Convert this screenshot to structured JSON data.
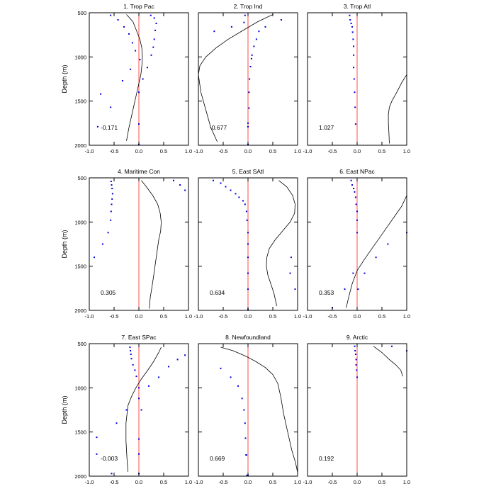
{
  "figure": {
    "y_axis_label": "Depth (m)"
  },
  "colors": {
    "zero_line": "#ff4d4d",
    "points": "#0000dd",
    "curve": "#000000",
    "frame": "#000000"
  },
  "chart_data": [
    {
      "type": "scatter",
      "title": "1. Trop Pac",
      "annotation": "-0.171",
      "xlim": [
        -1,
        1
      ],
      "ylim": [
        2000,
        500
      ],
      "xticks": [
        "-1.0",
        "-0.5",
        "0.0",
        "0.5",
        "1.0"
      ],
      "yticks": [
        "500",
        "1000",
        "1500",
        "2000"
      ],
      "series": [
        {
          "kind": "points",
          "x": [
            0.24,
            -0.57,
            0.31,
            -0.42,
            0.35,
            -0.3,
            0.33,
            -0.2,
            0.31,
            -0.13,
            0.29,
            -0.07,
            0.25,
            0.02,
            0.17,
            -0.17,
            0.08,
            -0.33,
            0.0,
            -0.77,
            -0.57,
            0.0,
            -0.83,
            0.0
          ],
          "y": [
            530,
            530,
            560,
            580,
            620,
            660,
            700,
            740,
            800,
            840,
            890,
            930,
            980,
            1030,
            1120,
            1140,
            1250,
            1270,
            1400,
            1420,
            1570,
            1760,
            1790,
            1990
          ]
        },
        {
          "kind": "line",
          "x": [
            -0.25,
            -0.12,
            -0.05,
            0.02,
            0.06,
            0.07,
            0.06,
            0.04,
            0.0,
            -0.04,
            -0.08,
            -0.12,
            -0.16,
            -0.2,
            -0.25
          ],
          "y": [
            520,
            600,
            700,
            800,
            900,
            1000,
            1100,
            1200,
            1300,
            1400,
            1500,
            1600,
            1700,
            1800,
            1950
          ]
        }
      ]
    },
    {
      "type": "scatter",
      "title": "2. Trop Ind",
      "annotation": "-0.677",
      "xlim": [
        -1,
        1
      ],
      "ylim": [
        2000,
        500
      ],
      "xticks": [
        "-1.0",
        "-0.5",
        "0.0",
        "0.5",
        "1.0"
      ],
      "yticks": [
        "500",
        "1000",
        "1500",
        "2000"
      ],
      "series": [
        {
          "kind": "points",
          "x": [
            -0.06,
            0.67,
            -0.08,
            -0.33,
            0.35,
            -0.68,
            0.22,
            0.17,
            0.12,
            0.08,
            0.07,
            0.05,
            0.03,
            0.02,
            0.02,
            0.0,
            0.0,
            0.0
          ],
          "y": [
            530,
            580,
            610,
            660,
            660,
            710,
            710,
            800,
            880,
            980,
            1020,
            1110,
            1250,
            1400,
            1580,
            1750,
            1790,
            1990
          ]
        },
        {
          "kind": "line",
          "x": [
            0.5,
            0.2,
            -0.1,
            -0.4,
            -0.65,
            -0.85,
            -0.97,
            -1.0,
            -0.95,
            -0.85,
            -0.75,
            -0.62
          ],
          "y": [
            520,
            600,
            700,
            800,
            900,
            1000,
            1100,
            1200,
            1400,
            1600,
            1800,
            1960
          ]
        }
      ]
    },
    {
      "type": "scatter",
      "title": "3. Trop Atl",
      "annotation": "1.027",
      "xlim": [
        -1,
        1
      ],
      "ylim": [
        2000,
        500
      ],
      "xticks": [
        "-1.0",
        "-0.5",
        "0.0",
        "0.5",
        "1.0"
      ],
      "yticks": [
        "500",
        "1000",
        "1500",
        "2000"
      ],
      "series": [
        {
          "kind": "points",
          "x": [
            -0.15,
            -0.14,
            -0.12,
            -0.1,
            -0.09,
            -0.08,
            -0.07,
            -0.07,
            -0.07,
            -0.06,
            -0.05,
            -0.04,
            -0.03
          ],
          "y": [
            530,
            580,
            620,
            660,
            720,
            800,
            880,
            980,
            1120,
            1250,
            1400,
            1570,
            1760
          ]
        },
        {
          "kind": "line",
          "x": [
            1.0,
            0.9,
            0.8,
            0.7,
            0.65,
            0.63,
            0.63,
            0.64,
            0.65
          ],
          "y": [
            1200,
            1290,
            1400,
            1500,
            1570,
            1650,
            1750,
            1850,
            1980
          ]
        }
      ]
    },
    {
      "type": "scatter",
      "title": "4. Maritime Con",
      "annotation": "0.305",
      "xlim": [
        -1,
        1
      ],
      "ylim": [
        2000,
        500
      ],
      "xticks": [
        "-1.0",
        "-0.5",
        "0.0",
        "0.5",
        "1.0"
      ],
      "yticks": [
        "500",
        "1000",
        "1500",
        "2000"
      ],
      "series": [
        {
          "kind": "points",
          "x": [
            0.7,
            -0.56,
            0.83,
            -0.55,
            0.93,
            -0.54,
            -0.53,
            -0.54,
            -0.55,
            -0.56,
            -0.57,
            -0.62,
            -0.73,
            -0.9
          ],
          "y": [
            530,
            540,
            580,
            580,
            640,
            620,
            680,
            740,
            800,
            880,
            980,
            1120,
            1250,
            1400
          ]
        },
        {
          "kind": "line",
          "x": [
            0.05,
            0.15,
            0.28,
            0.38,
            0.43,
            0.45,
            0.44,
            0.4,
            0.35,
            0.3,
            0.26,
            0.23,
            0.21
          ],
          "y": [
            530,
            600,
            700,
            800,
            900,
            1000,
            1100,
            1200,
            1400,
            1600,
            1750,
            1850,
            1980
          ]
        }
      ]
    },
    {
      "type": "scatter",
      "title": "5. East SAtl",
      "annotation": "0.634",
      "xlim": [
        -1,
        1
      ],
      "ylim": [
        2000,
        500
      ],
      "xticks": [
        "-1.0",
        "-0.5",
        "0.0",
        "0.5",
        "1.0"
      ],
      "yticks": [
        "500",
        "1000",
        "1500",
        "2000"
      ],
      "series": [
        {
          "kind": "points",
          "x": [
            -0.7,
            -0.55,
            -0.45,
            -0.35,
            -0.25,
            -0.18,
            -0.1,
            -0.06,
            -0.03,
            -0.02,
            0.0,
            0.0,
            0.0,
            0.0,
            0.0,
            0.0,
            0.0,
            0.0,
            0.0,
            0.87,
            0.85,
            0.95
          ],
          "y": [
            530,
            560,
            600,
            640,
            680,
            720,
            760,
            800,
            880,
            980,
            1120,
            1250,
            1400,
            1580,
            1760,
            1990,
            1990,
            1990,
            1990,
            1400,
            1580,
            1760
          ]
        },
        {
          "kind": "line",
          "x": [
            0.62,
            0.78,
            0.9,
            0.95,
            0.94,
            0.85,
            0.7,
            0.55,
            0.43,
            0.38,
            0.37,
            0.4,
            0.46,
            0.52,
            0.58
          ],
          "y": [
            530,
            600,
            700,
            800,
            900,
            1000,
            1100,
            1200,
            1300,
            1400,
            1500,
            1600,
            1700,
            1800,
            1950
          ]
        }
      ]
    },
    {
      "type": "scatter",
      "title": "6. East NPac",
      "annotation": "0.353",
      "xlim": [
        -1,
        1
      ],
      "ylim": [
        2000,
        500
      ],
      "xticks": [
        "-1.0",
        "-0.5",
        "0.0",
        "0.5",
        "1.0"
      ],
      "yticks": [
        "500",
        "1000",
        "1500",
        "2000"
      ],
      "series": [
        {
          "kind": "points",
          "x": [
            -0.12,
            -0.1,
            -0.07,
            -0.05,
            -0.03,
            -0.02,
            0.0,
            0.0,
            0.0,
            1.0,
            0.62,
            0.38,
            0.15,
            -0.08,
            -0.25,
            0.02,
            -0.5
          ],
          "y": [
            530,
            580,
            620,
            660,
            720,
            800,
            880,
            980,
            1120,
            1120,
            1250,
            1400,
            1580,
            1580,
            1760,
            1760,
            1970
          ]
        },
        {
          "kind": "line",
          "x": [
            1.0,
            0.9,
            0.75,
            0.6,
            0.45,
            0.3,
            0.15,
            0.0,
            -0.1,
            -0.17,
            -0.22
          ],
          "y": [
            700,
            820,
            940,
            1060,
            1180,
            1300,
            1420,
            1550,
            1700,
            1850,
            1970
          ]
        }
      ]
    },
    {
      "type": "scatter",
      "title": "7. East SPac",
      "annotation": "-0.003",
      "xlim": [
        -1,
        1
      ],
      "ylim": [
        2000,
        500
      ],
      "xticks": [
        "-1.0",
        "-0.5",
        "0.0",
        "0.5",
        "1.0"
      ],
      "yticks": [
        "500",
        "1000",
        "1500",
        "2000"
      ],
      "series": [
        {
          "kind": "points",
          "x": [
            -0.18,
            -0.17,
            -0.16,
            0.93,
            -0.15,
            0.78,
            -0.12,
            0.6,
            -0.08,
            0.4,
            -0.05,
            0.2,
            0.0,
            0.0,
            -0.25,
            0.05,
            -0.45,
            -0.85,
            0.0,
            0.0,
            -0.85,
            -0.55,
            0.0
          ],
          "y": [
            540,
            580,
            620,
            630,
            670,
            680,
            740,
            760,
            800,
            880,
            870,
            980,
            1000,
            1120,
            1250,
            1250,
            1400,
            1560,
            1580,
            1750,
            1750,
            1970,
            1970
          ]
        },
        {
          "kind": "line",
          "x": [
            0.45,
            0.4,
            0.3,
            0.18,
            0.05,
            -0.06,
            -0.15,
            -0.22,
            -0.26,
            -0.26,
            -0.24,
            -0.22
          ],
          "y": [
            540,
            600,
            700,
            800,
            900,
            1000,
            1100,
            1200,
            1400,
            1600,
            1800,
            1950
          ]
        }
      ]
    },
    {
      "type": "scatter",
      "title": "8. Newfoundland",
      "annotation": "0.669",
      "xlim": [
        -1,
        1
      ],
      "ylim": [
        2000,
        500
      ],
      "xticks": [
        "-1.0",
        "-0.5",
        "0.0",
        "0.5",
        "1.0"
      ],
      "yticks": [
        "500",
        "1000",
        "1500",
        "2000"
      ],
      "series": [
        {
          "kind": "points",
          "x": [
            -0.55,
            -0.35,
            -0.2,
            -0.12,
            -0.08,
            -0.06,
            -0.05,
            -0.04,
            -0.03,
            -0.02,
            0.0
          ],
          "y": [
            780,
            880,
            980,
            1120,
            1250,
            1400,
            1570,
            1760,
            1760,
            1990,
            1990
          ]
        },
        {
          "kind": "line",
          "x": [
            -0.55,
            -0.3,
            -0.05,
            0.15,
            0.35,
            0.5,
            0.6,
            0.66,
            0.72,
            0.8,
            0.88,
            0.96,
            1.0
          ],
          "y": [
            540,
            580,
            640,
            700,
            770,
            850,
            950,
            1100,
            1300,
            1500,
            1700,
            1850,
            1960
          ]
        }
      ]
    },
    {
      "type": "scatter",
      "title": "9. Arctic",
      "annotation": "0.192",
      "xlim": [
        -1,
        1
      ],
      "ylim": [
        2000,
        500
      ],
      "xticks": [
        "-1.0",
        "-0.5",
        "0.0",
        "0.5",
        "1.0"
      ],
      "yticks": [
        "500",
        "1000",
        "1500",
        "2000"
      ],
      "series": [
        {
          "kind": "points",
          "x": [
            -0.05,
            0.7,
            -0.04,
            1.0,
            -0.03,
            -0.02,
            -0.02,
            -0.01,
            0.0
          ],
          "y": [
            530,
            530,
            580,
            580,
            620,
            680,
            740,
            800,
            880
          ]
        },
        {
          "kind": "line",
          "x": [
            0.33,
            0.5,
            0.65,
            0.78,
            0.88,
            0.92
          ],
          "y": [
            530,
            600,
            680,
            740,
            800,
            870
          ]
        }
      ]
    }
  ]
}
